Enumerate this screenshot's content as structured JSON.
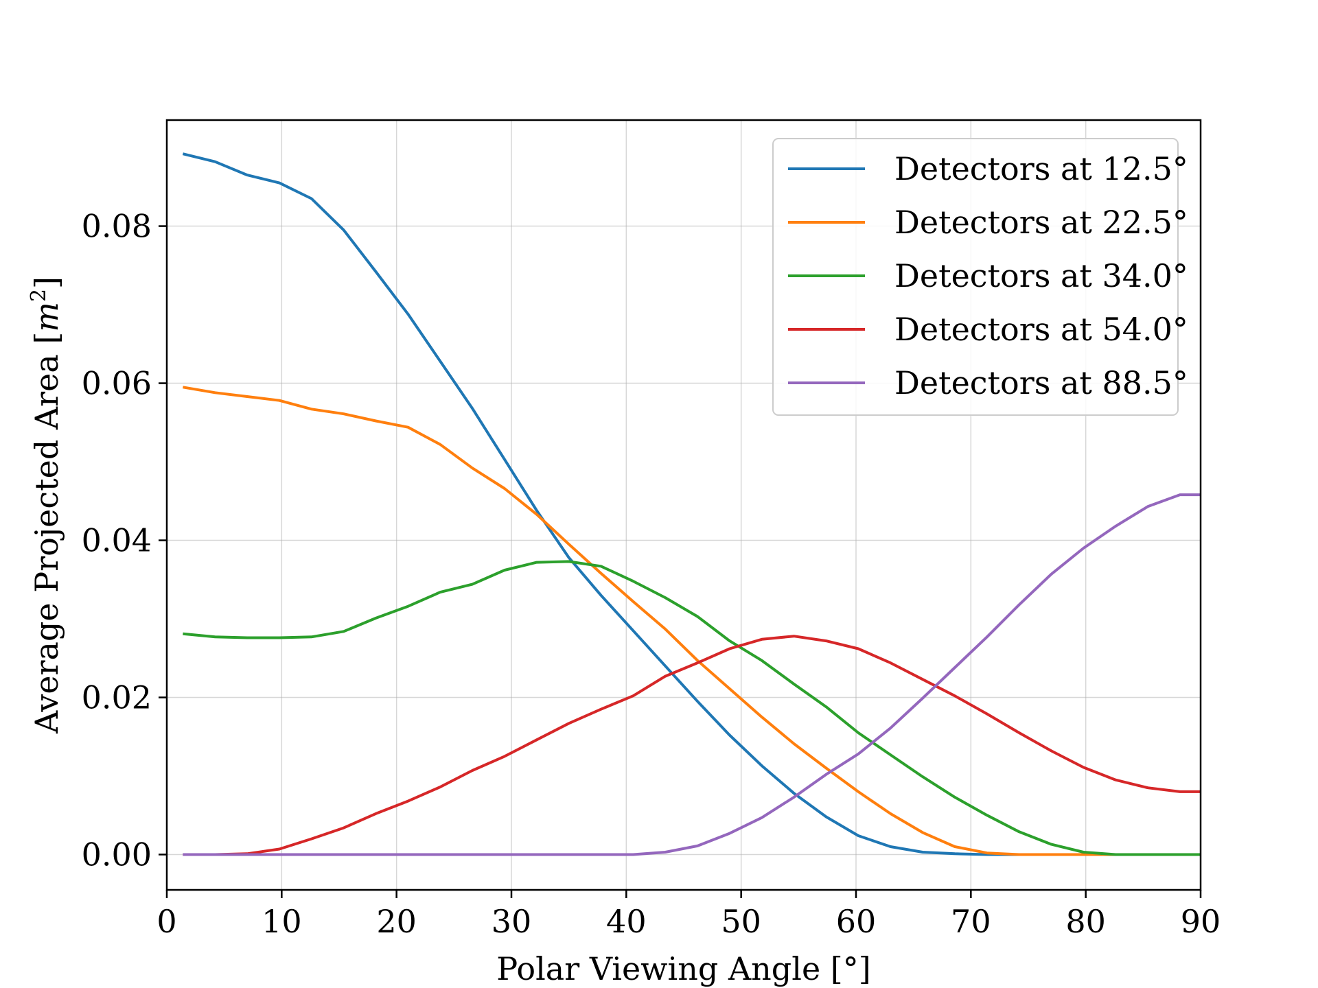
{
  "chart_data": {
    "type": "line",
    "title": "",
    "xlabel": "Polar Viewing Angle [°]",
    "ylabel": "Average Projected Area [m²]",
    "ylabel_parts": {
      "main": "Average Projected Area [",
      "var": "m",
      "sup": "2",
      "close": "]"
    },
    "xlim": [
      0,
      90
    ],
    "ylim": [
      -0.0045,
      0.0935
    ],
    "x_ticks": [
      0,
      10,
      20,
      30,
      40,
      50,
      60,
      70,
      80,
      90
    ],
    "x_tick_labels": [
      "0",
      "10",
      "20",
      "30",
      "40",
      "50",
      "60",
      "70",
      "80",
      "90"
    ],
    "y_ticks": [
      0.0,
      0.02,
      0.04,
      0.06,
      0.08
    ],
    "y_tick_labels": [
      "0.00",
      "0.02",
      "0.04",
      "0.06",
      "0.08"
    ],
    "grid": true,
    "legend_position": "upper right",
    "x": [
      1.4,
      4.2,
      7.0,
      9.8,
      12.6,
      15.4,
      18.2,
      21.0,
      23.8,
      26.6,
      29.4,
      32.2,
      35.0,
      37.8,
      40.6,
      43.4,
      46.2,
      49.0,
      51.8,
      54.6,
      57.4,
      60.2,
      63.0,
      65.8,
      68.6,
      71.4,
      74.2,
      77.0,
      79.8,
      82.6,
      85.4,
      88.2,
      90.0
    ],
    "series": [
      {
        "name": "Detectors at 12.5°",
        "color": "#1f77b4",
        "values": [
          0.0892,
          0.0882,
          0.0865,
          0.0855,
          0.0835,
          0.0795,
          0.0742,
          0.0688,
          0.0628,
          0.0568,
          0.0503,
          0.0438,
          0.0378,
          0.033,
          0.0285,
          0.024,
          0.0195,
          0.0152,
          0.0113,
          0.0078,
          0.0048,
          0.0024,
          0.001,
          0.0003,
          0.0001,
          0.0,
          0.0,
          0.0,
          0.0,
          0.0,
          0.0,
          0.0,
          0.0
        ]
      },
      {
        "name": "Detectors at 22.5°",
        "color": "#ff7f0e",
        "values": [
          0.0595,
          0.0588,
          0.0583,
          0.0578,
          0.0567,
          0.0561,
          0.0552,
          0.0544,
          0.0522,
          0.0492,
          0.0466,
          0.0433,
          0.0395,
          0.0358,
          0.0322,
          0.0287,
          0.0247,
          0.0211,
          0.0175,
          0.0141,
          0.011,
          0.008,
          0.0052,
          0.0028,
          0.001,
          0.0002,
          0.0,
          0.0,
          0.0,
          0.0,
          0.0,
          0.0,
          0.0
        ]
      },
      {
        "name": "Detectors at 34.0°",
        "color": "#2ca02c",
        "values": [
          0.0281,
          0.0277,
          0.0276,
          0.0276,
          0.0277,
          0.0284,
          0.0301,
          0.0316,
          0.0334,
          0.0344,
          0.0362,
          0.0372,
          0.0373,
          0.0367,
          0.0348,
          0.0327,
          0.0303,
          0.0272,
          0.0247,
          0.0217,
          0.0188,
          0.0155,
          0.0127,
          0.0099,
          0.0073,
          0.005,
          0.0029,
          0.0013,
          0.0003,
          0.0,
          0.0,
          0.0,
          0.0
        ]
      },
      {
        "name": "Detectors at 54.0°",
        "color": "#d62728",
        "values": [
          0.0,
          0.0,
          0.0001,
          0.0007,
          0.002,
          0.0034,
          0.0052,
          0.0068,
          0.0086,
          0.0107,
          0.0125,
          0.0146,
          0.0167,
          0.0185,
          0.0202,
          0.0227,
          0.0244,
          0.0262,
          0.0274,
          0.0278,
          0.0272,
          0.0262,
          0.0244,
          0.0223,
          0.0202,
          0.0179,
          0.0155,
          0.0132,
          0.0111,
          0.0095,
          0.0085,
          0.008,
          0.008
        ]
      },
      {
        "name": "Detectors at 88.5°",
        "color": "#9467bd",
        "values": [
          0.0,
          0.0,
          0.0,
          0.0,
          0.0,
          0.0,
          0.0,
          0.0,
          0.0,
          0.0,
          0.0,
          0.0,
          0.0,
          0.0,
          0.0,
          0.0003,
          0.0011,
          0.0027,
          0.0047,
          0.0073,
          0.0102,
          0.0128,
          0.0161,
          0.0199,
          0.0238,
          0.0277,
          0.0318,
          0.0357,
          0.039,
          0.0418,
          0.0443,
          0.0458,
          0.0458
        ]
      }
    ]
  }
}
